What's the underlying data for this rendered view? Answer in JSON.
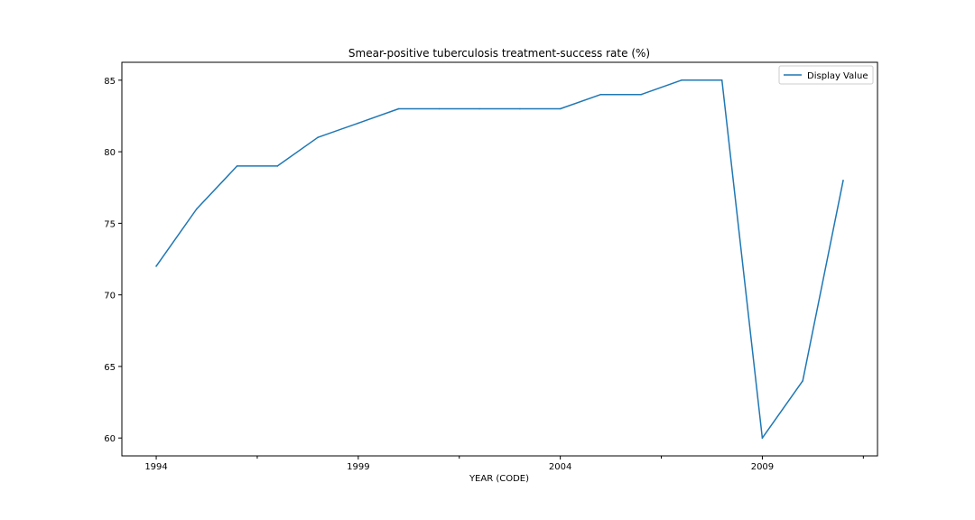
{
  "chart_data": {
    "type": "line",
    "title": "Smear-positive tuberculosis treatment-success rate (%)",
    "xlabel": "YEAR (CODE)",
    "ylabel": "",
    "x": [
      1994,
      1995,
      1996,
      1997,
      1998,
      1999,
      2000,
      2001,
      2002,
      2003,
      2004,
      2005,
      2006,
      2007,
      2008,
      2009,
      2010,
      2011
    ],
    "series": [
      {
        "name": "Display Value",
        "color": "#1f77b4",
        "values": [
          72,
          76,
          79,
          79,
          81,
          82,
          83,
          83,
          83,
          83,
          83,
          84,
          84,
          85,
          85,
          60,
          64,
          78
        ]
      }
    ],
    "x_ticks": [
      1994,
      1999,
      2004,
      2009
    ],
    "x_minor_ticks": [
      1996.5,
      2001.5,
      2006.5,
      2011.5
    ],
    "x_tick_labels": [
      "1994",
      "1999",
      "2004",
      "2009"
    ],
    "y_ticks": [
      60,
      65,
      70,
      75,
      80,
      85
    ],
    "y_tick_labels": [
      "60",
      "65",
      "70",
      "75",
      "80",
      "85"
    ],
    "xlim": [
      1993.15,
      2011.85
    ],
    "ylim": [
      58.75,
      86.25
    ],
    "grid": false,
    "legend_position": "top-right"
  }
}
